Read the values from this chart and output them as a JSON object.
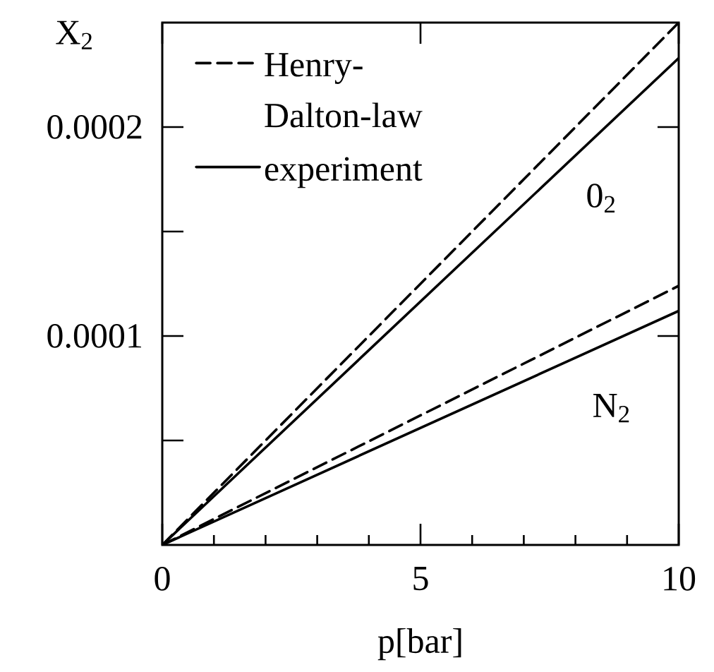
{
  "chart_data": {
    "type": "line",
    "xlabel": "p[bar]",
    "ylabel": "X$_{2}$",
    "xlim": [
      0,
      10
    ],
    "ylim": [
      0,
      0.00025
    ],
    "x": [
      0,
      10
    ],
    "xticks": [
      0,
      {
        "value": 1,
        "label": null
      },
      {
        "value": 2,
        "label": null
      },
      {
        "value": 3,
        "label": null
      },
      {
        "value": 4,
        "label": null
      },
      5,
      {
        "value": 6,
        "label": null
      },
      {
        "value": 7,
        "label": null
      },
      {
        "value": 8,
        "label": null
      },
      {
        "value": 9,
        "label": null
      },
      10
    ],
    "yticks": [
      {
        "value": 5e-05,
        "label": null
      },
      0.0001,
      {
        "value": 0.00015,
        "label": null
      },
      0.0002
    ],
    "legend": "top left",
    "series": [
      {
        "name": "Henry-Dalton-law",
        "color": "#000000",
        "line_style": "dashed",
        "values": [
          0,
          0.00025
        ]
      },
      {
        "name": "experiment",
        "color": "#000000",
        "line_style": "solid",
        "values": [
          0,
          0.000233
        ]
      },
      {
        "color": "#000000",
        "line_style": "dashed",
        "values": [
          0,
          0.000124
        ]
      },
      {
        "color": "#000000",
        "line_style": "solid",
        "values": [
          0,
          0.000112
        ]
      }
    ],
    "annotations": [
      {
        "text": "0$_{2}$",
        "x": 8.5,
        "y": 0.000198
      },
      {
        "text": "N$_{2}$",
        "x": 8.7,
        "y": 9.74e-05
      }
    ]
  }
}
